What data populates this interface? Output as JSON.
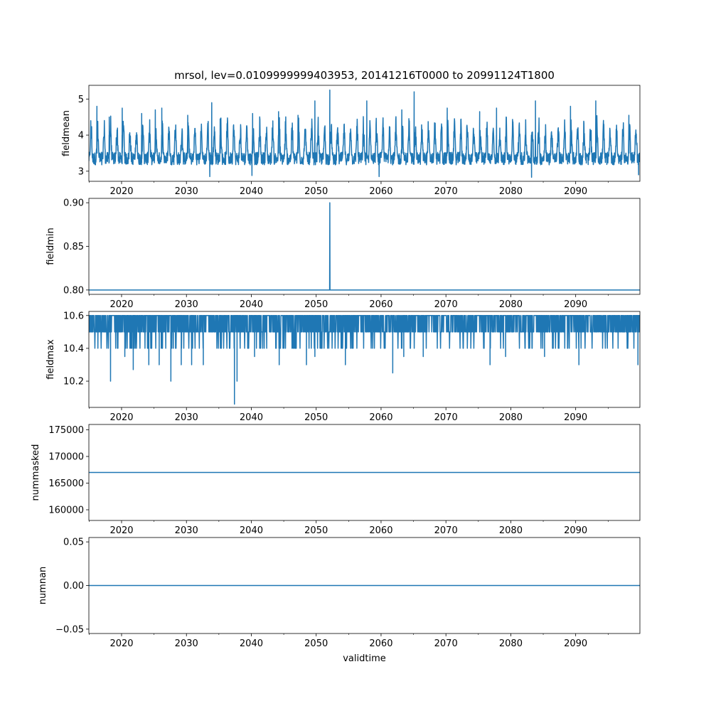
{
  "title": "mrsol, lev=0.0109999999403953, 20141216T0000 to 20991124T1800",
  "xlabel": "validtime",
  "line_color": "#1f77b4",
  "chart_data": {
    "type": "line",
    "shared_x": {
      "label": "validtime",
      "range": [
        2014.96,
        2099.9
      ],
      "major_ticks": [
        2020,
        2030,
        2040,
        2050,
        2060,
        2070,
        2080,
        2090
      ],
      "minor_tick_step": 5
    },
    "panels": [
      {
        "name": "fieldmean",
        "ylabel": "fieldmean",
        "ylim": [
          2.72,
          5.38
        ],
        "yticks": [
          3,
          4,
          5
        ],
        "ytick_labels": [
          "3",
          "4",
          "5"
        ],
        "series": {
          "kind": "seasonal-oscillation",
          "x_start": 2014.96,
          "x_end": 2099.9,
          "baseline_min": 3.1,
          "typical_peak": 4.3,
          "peaks": [
            {
              "x": 2016.2,
              "y": 4.8
            },
            {
              "x": 2018.1,
              "y": 4.5
            },
            {
              "x": 2020.1,
              "y": 4.75
            },
            {
              "x": 2023.1,
              "y": 4.6
            },
            {
              "x": 2025.2,
              "y": 4.7
            },
            {
              "x": 2026.2,
              "y": 4.75
            },
            {
              "x": 2030.2,
              "y": 4.55
            },
            {
              "x": 2033.9,
              "y": 4.9
            },
            {
              "x": 2035.2,
              "y": 4.45
            },
            {
              "x": 2040.2,
              "y": 4.6
            },
            {
              "x": 2044.2,
              "y": 4.65
            },
            {
              "x": 2047.2,
              "y": 4.55
            },
            {
              "x": 2049.8,
              "y": 4.95
            },
            {
              "x": 2052.1,
              "y": 5.25
            },
            {
              "x": 2057.8,
              "y": 4.95
            },
            {
              "x": 2063.2,
              "y": 4.7
            },
            {
              "x": 2065.1,
              "y": 5.2
            },
            {
              "x": 2070.2,
              "y": 4.75
            },
            {
              "x": 2075.2,
              "y": 4.65
            },
            {
              "x": 2077.8,
              "y": 4.75
            },
            {
              "x": 2083.8,
              "y": 4.95
            },
            {
              "x": 2089.2,
              "y": 4.8
            },
            {
              "x": 2093.1,
              "y": 4.95
            },
            {
              "x": 2098.2,
              "y": 4.55
            }
          ],
          "troughs": [
            {
              "x": 2033.6,
              "y": 2.85
            },
            {
              "x": 2040.1,
              "y": 2.88
            },
            {
              "x": 2059.7,
              "y": 2.85
            },
            {
              "x": 2083.2,
              "y": 2.83
            },
            {
              "x": 2099.7,
              "y": 2.9
            }
          ]
        }
      },
      {
        "name": "fieldmin",
        "ylabel": "fieldmin",
        "ylim": [
          0.795,
          0.905
        ],
        "yticks": [
          0.8,
          0.85,
          0.9
        ],
        "ytick_labels": [
          "0.80",
          "0.85",
          "0.90"
        ],
        "series": {
          "kind": "constant-with-spike",
          "x_start": 2014.96,
          "x_end": 2099.9,
          "baseline": 0.8,
          "spikes": [
            {
              "x": 2052.1,
              "y": 0.9
            }
          ]
        }
      },
      {
        "name": "fieldmax",
        "ylabel": "fieldmax",
        "ylim": [
          10.04,
          10.625
        ],
        "yticks": [
          10.2,
          10.4,
          10.6
        ],
        "ytick_labels": [
          "10.2",
          "10.4",
          "10.6"
        ],
        "series": {
          "kind": "quantized-noise",
          "x_start": 2014.96,
          "x_end": 2099.9,
          "levels": [
            10.6,
            10.5,
            10.4
          ],
          "dips": [
            {
              "x": 2018.3,
              "y": 10.2
            },
            {
              "x": 2020.5,
              "y": 10.35
            },
            {
              "x": 2021.8,
              "y": 10.27
            },
            {
              "x": 2024.2,
              "y": 10.3
            },
            {
              "x": 2025.8,
              "y": 10.3
            },
            {
              "x": 2027.6,
              "y": 10.2
            },
            {
              "x": 2029.2,
              "y": 10.3
            },
            {
              "x": 2030.8,
              "y": 10.3
            },
            {
              "x": 2032.6,
              "y": 10.3
            },
            {
              "x": 2037.4,
              "y": 10.06
            },
            {
              "x": 2037.8,
              "y": 10.2
            },
            {
              "x": 2040.5,
              "y": 10.35
            },
            {
              "x": 2044.3,
              "y": 10.3
            },
            {
              "x": 2048.5,
              "y": 10.3
            },
            {
              "x": 2049.8,
              "y": 10.35
            },
            {
              "x": 2054.5,
              "y": 10.3
            },
            {
              "x": 2061.8,
              "y": 10.25
            },
            {
              "x": 2063.5,
              "y": 10.35
            },
            {
              "x": 2066.5,
              "y": 10.35
            },
            {
              "x": 2076.8,
              "y": 10.3
            },
            {
              "x": 2079.2,
              "y": 10.35
            },
            {
              "x": 2085.2,
              "y": 10.35
            },
            {
              "x": 2090.5,
              "y": 10.3
            },
            {
              "x": 2099.6,
              "y": 10.3
            }
          ]
        }
      },
      {
        "name": "nummasked",
        "ylabel": "nummasked",
        "ylim": [
          158000,
          176000
        ],
        "yticks": [
          160000,
          165000,
          170000,
          175000
        ],
        "ytick_labels": [
          "160000",
          "165000",
          "170000",
          "175000"
        ],
        "series": {
          "kind": "constant",
          "x_start": 2014.96,
          "x_end": 2099.9,
          "value": 167000
        }
      },
      {
        "name": "numnan",
        "ylabel": "numnan",
        "ylim": [
          -0.055,
          0.055
        ],
        "yticks": [
          -0.05,
          0.0,
          0.05
        ],
        "ytick_labels": [
          "−0.05",
          "0.00",
          "0.05"
        ],
        "series": {
          "kind": "constant",
          "x_start": 2014.96,
          "x_end": 2099.9,
          "value": 0.0
        }
      }
    ]
  }
}
